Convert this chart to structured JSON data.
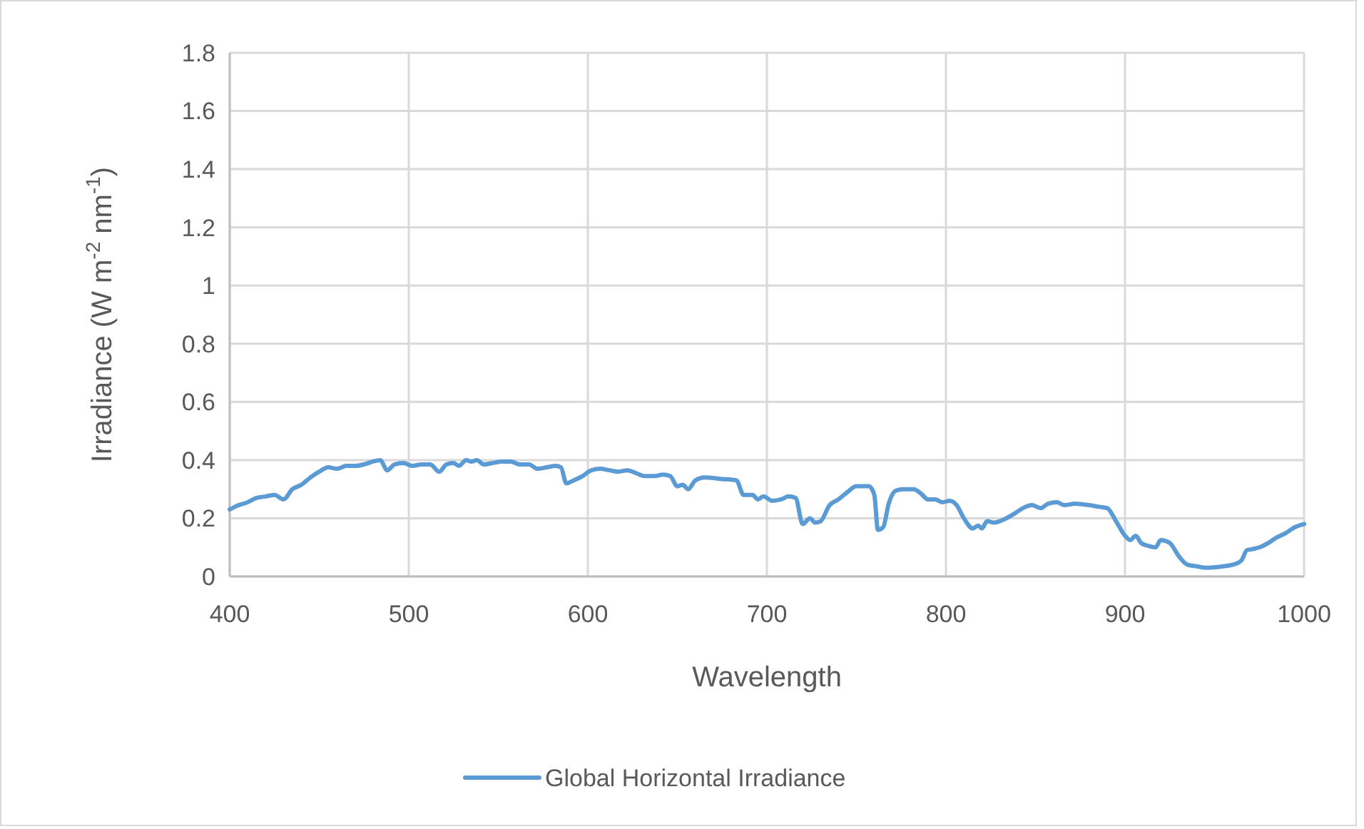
{
  "chart_data": {
    "type": "line",
    "xlabel": "Wavelength",
    "ylabel": "Irradiance  (W m$^{-2}$ nm$^{-1}$)",
    "xlim": [
      400,
      1000
    ],
    "xticks": [
      400,
      500,
      600,
      700,
      800,
      900,
      1000
    ],
    "ylim": [
      0,
      1.8
    ],
    "yticks": [
      0,
      {
        "value": 0.2,
        "label": "0.2"
      },
      {
        "value": 0.4,
        "label": "0.4"
      },
      {
        "value": 0.6,
        "label": "0.6"
      },
      {
        "value": 0.8,
        "label": "0.8"
      },
      1,
      {
        "value": 1.2,
        "label": "1.2"
      },
      {
        "value": 1.4,
        "label": "1.4"
      },
      {
        "value": 1.6,
        "label": "1.6"
      },
      {
        "value": 1.8,
        "label": "1.8"
      }
    ],
    "grid": true,
    "legend": "bottom",
    "marker": "none",
    "line_style": "solid",
    "series": [
      {
        "name": "Global Horizontal Irradiance",
        "color": "#5b9bd5",
        "x": [
          400,
          405,
          410,
          415,
          420,
          425,
          430,
          435,
          440,
          445,
          450,
          455,
          460,
          465,
          470,
          475,
          480,
          484,
          488,
          492,
          497,
          502,
          507,
          512,
          517,
          521,
          525,
          528,
          532,
          535,
          538,
          542,
          547,
          552,
          557,
          562,
          567,
          572,
          577,
          582,
          585,
          588,
          592,
          597,
          602,
          607,
          612,
          617,
          622,
          627,
          632,
          637,
          642,
          646,
          650,
          653,
          656,
          660,
          665,
          675,
          683,
          687,
          692,
          695,
          698,
          703,
          708,
          712,
          716,
          720,
          724,
          727,
          730,
          735,
          740,
          745,
          750,
          757,
          760,
          762,
          765,
          768,
          772,
          776,
          782,
          786,
          790,
          794,
          798,
          802,
          806,
          810,
          815,
          818,
          820,
          823,
          827,
          832,
          838,
          843,
          848,
          853,
          857,
          862,
          866,
          872,
          880,
          885,
          890,
          895,
          900,
          903,
          906,
          909,
          913,
          917,
          920,
          925,
          930,
          935,
          940,
          945,
          955,
          960,
          965,
          968,
          972,
          975,
          980,
          985,
          990,
          995,
          1000
        ],
        "values": [
          0.23,
          0.245,
          0.255,
          0.27,
          0.275,
          0.28,
          0.265,
          0.3,
          0.315,
          0.34,
          0.36,
          0.375,
          0.37,
          0.38,
          0.38,
          0.385,
          0.395,
          0.4,
          0.365,
          0.385,
          0.39,
          0.38,
          0.385,
          0.385,
          0.36,
          0.385,
          0.39,
          0.38,
          0.4,
          0.395,
          0.4,
          0.385,
          0.39,
          0.395,
          0.395,
          0.385,
          0.385,
          0.37,
          0.375,
          0.38,
          0.375,
          0.32,
          0.33,
          0.345,
          0.365,
          0.37,
          0.365,
          0.36,
          0.365,
          0.355,
          0.345,
          0.345,
          0.35,
          0.345,
          0.31,
          0.315,
          0.3,
          0.33,
          0.34,
          0.335,
          0.33,
          0.28,
          0.28,
          0.265,
          0.275,
          0.26,
          0.265,
          0.275,
          0.27,
          0.18,
          0.2,
          0.185,
          0.19,
          0.245,
          0.265,
          0.29,
          0.31,
          0.31,
          0.28,
          0.16,
          0.17,
          0.25,
          0.295,
          0.3,
          0.3,
          0.285,
          0.265,
          0.265,
          0.255,
          0.26,
          0.245,
          0.2,
          0.165,
          0.175,
          0.165,
          0.19,
          0.185,
          0.195,
          0.215,
          0.235,
          0.245,
          0.235,
          0.25,
          0.255,
          0.245,
          0.25,
          0.245,
          0.24,
          0.235,
          0.19,
          0.14,
          0.125,
          0.14,
          0.115,
          0.105,
          0.1,
          0.125,
          0.115,
          0.07,
          0.04,
          0.035,
          0.03,
          0.035,
          0.04,
          0.055,
          0.09,
          0.095,
          0.1,
          0.115,
          0.135,
          0.15,
          0.17,
          0.18
        ]
      }
    ]
  }
}
